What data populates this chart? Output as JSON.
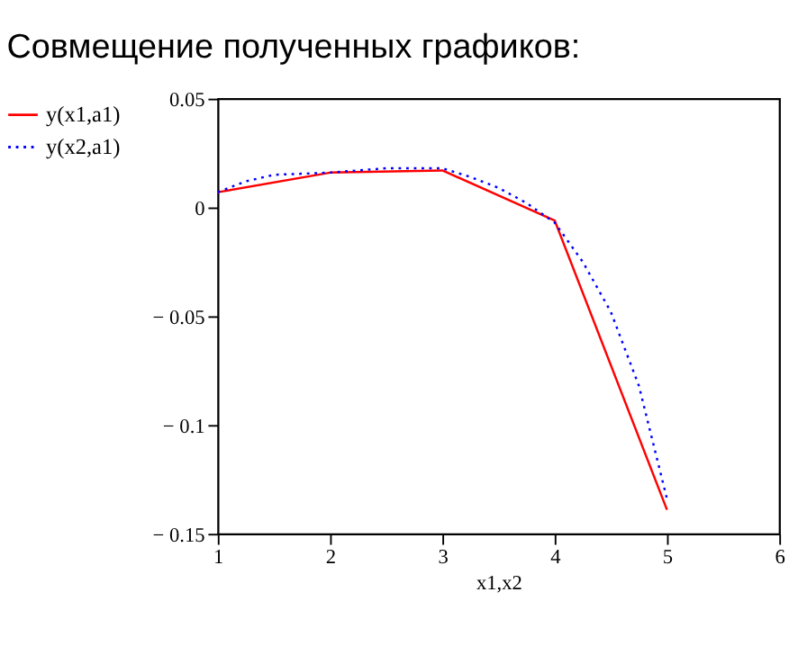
{
  "chart_data": {
    "type": "line",
    "title": "Совмещение полученных графиков:",
    "xlabel": "x1,x2",
    "xlim": [
      1,
      6
    ],
    "xticks": [
      1,
      2,
      3,
      4,
      5,
      6
    ],
    "ylim": [
      -0.15,
      0.05
    ],
    "yticks": [
      {
        "value": -0.15,
        "label": "− 0.15"
      },
      {
        "value": -0.1,
        "label": "− 0.1"
      },
      {
        "value": -0.05,
        "label": "− 0.05"
      },
      0,
      0.05
    ],
    "grid": false,
    "legend": "left",
    "marker": "none",
    "series": [
      {
        "name": "y(x1,a1)",
        "color": "#ff0000",
        "line_style": "solid",
        "x": [
          1,
          2,
          3,
          4,
          5
        ],
        "values": [
          0.007,
          0.016,
          0.017,
          -0.006,
          -0.139
        ]
      },
      {
        "name": "y(x2,a1)",
        "color": "#0000ff",
        "line_style": "dotted",
        "x": [
          1,
          1.25,
          1.5,
          2,
          2.5,
          3,
          3.25,
          3.5,
          3.75,
          4,
          4.25,
          4.5,
          4.75,
          5
        ],
        "values": [
          0.007,
          0.012,
          0.015,
          0.016,
          0.018,
          0.018,
          0.014,
          0.009,
          0.002,
          -0.007,
          -0.025,
          -0.048,
          -0.082,
          -0.134
        ]
      }
    ]
  }
}
